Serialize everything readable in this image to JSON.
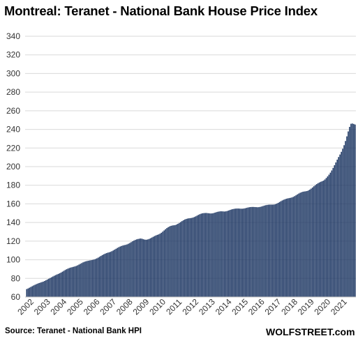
{
  "chart_data": {
    "type": "bar",
    "title": "Montreal: Teranet - National Bank House Price Index",
    "xlabel": "",
    "ylabel": "",
    "ylim": [
      60,
      340
    ],
    "yticks": [
      60,
      80,
      100,
      120,
      140,
      160,
      180,
      200,
      220,
      240,
      260,
      280,
      300,
      320,
      340
    ],
    "grid": true,
    "bar_color": "#1f3864",
    "grid_color": "#d9d9d9",
    "frequency": "monthly",
    "x_tick_labels": [
      "2002",
      "2003",
      "2004",
      "2005",
      "2006",
      "2007",
      "2008",
      "2009",
      "2010",
      "2011",
      "2012",
      "2013",
      "2014",
      "2015",
      "2016",
      "2017",
      "2018",
      "2019",
      "2020",
      "2021"
    ],
    "annual_values": [
      {
        "year": "2002",
        "monthly": [
          68.5,
          69.2,
          70.0,
          70.8,
          71.6,
          72.4,
          73.1,
          73.8,
          74.4,
          75.0,
          75.5,
          76.0
        ]
      },
      {
        "year": "2003",
        "monthly": [
          76.5,
          77.2,
          78.0,
          78.8,
          79.6,
          80.4,
          81.2,
          82.0,
          82.8,
          83.5,
          84.2,
          84.8
        ]
      },
      {
        "year": "2004",
        "monthly": [
          85.5,
          86.3,
          87.2,
          88.1,
          89.0,
          89.8,
          90.5,
          91.1,
          91.6,
          92.0,
          92.4,
          92.8
        ]
      },
      {
        "year": "2005",
        "monthly": [
          93.3,
          94.0,
          94.8,
          95.6,
          96.4,
          97.2,
          97.8,
          98.3,
          98.7,
          99.0,
          99.3,
          99.6
        ]
      },
      {
        "year": "2006",
        "monthly": [
          99.9,
          100.3,
          100.8,
          101.5,
          102.3,
          103.2,
          104.1,
          105.0,
          105.8,
          106.5,
          107.1,
          107.6
        ]
      },
      {
        "year": "2007",
        "monthly": [
          108.0,
          108.5,
          109.2,
          110.0,
          110.9,
          111.8,
          112.7,
          113.5,
          114.2,
          114.8,
          115.3,
          115.7
        ]
      },
      {
        "year": "2008",
        "monthly": [
          116.0,
          116.5,
          117.2,
          118.0,
          118.9,
          119.8,
          120.6,
          121.3,
          121.9,
          122.3,
          122.6,
          122.8
        ]
      },
      {
        "year": "2009",
        "monthly": [
          122.5,
          122.0,
          121.6,
          121.5,
          121.8,
          122.3,
          123.0,
          123.8,
          124.6,
          125.4,
          126.1,
          126.7
        ]
      },
      {
        "year": "2010",
        "monthly": [
          127.2,
          128.0,
          129.0,
          130.2,
          131.5,
          132.8,
          134.0,
          135.0,
          135.8,
          136.4,
          136.8,
          137.0
        ]
      },
      {
        "year": "2011",
        "monthly": [
          137.2,
          137.8,
          138.6,
          139.5,
          140.5,
          141.5,
          142.4,
          143.2,
          143.8,
          144.2,
          144.5,
          144.7
        ]
      },
      {
        "year": "2012",
        "monthly": [
          144.9,
          145.3,
          145.9,
          146.6,
          147.4,
          148.2,
          148.9,
          149.5,
          149.9,
          150.1,
          150.2,
          150.2
        ]
      },
      {
        "year": "2013",
        "monthly": [
          150.0,
          149.8,
          149.7,
          149.8,
          150.1,
          150.6,
          151.1,
          151.5,
          151.8,
          152.0,
          152.0,
          151.9
        ]
      },
      {
        "year": "2014",
        "monthly": [
          151.8,
          152.0,
          152.4,
          152.9,
          153.5,
          154.0,
          154.4,
          154.7,
          154.9,
          155.0,
          155.0,
          154.9
        ]
      },
      {
        "year": "2015",
        "monthly": [
          154.8,
          154.8,
          155.0,
          155.3,
          155.7,
          156.1,
          156.4,
          156.6,
          156.7,
          156.7,
          156.6,
          156.5
        ]
      },
      {
        "year": "2016",
        "monthly": [
          156.4,
          156.5,
          156.8,
          157.2,
          157.7,
          158.2,
          158.6,
          158.9,
          159.1,
          159.2,
          159.2,
          159.2
        ]
      },
      {
        "year": "2017",
        "monthly": [
          159.3,
          159.7,
          160.3,
          161.1,
          162.0,
          162.9,
          163.7,
          164.4,
          165.0,
          165.5,
          165.9,
          166.2
        ]
      },
      {
        "year": "2018",
        "monthly": [
          166.5,
          166.9,
          167.5,
          168.3,
          169.2,
          170.2,
          171.1,
          171.9,
          172.5,
          173.0,
          173.3,
          173.5
        ]
      },
      {
        "year": "2019",
        "monthly": [
          173.8,
          174.4,
          175.3,
          176.4,
          177.6,
          178.9,
          180.1,
          181.2,
          182.2,
          183.0,
          183.7,
          184.3
        ]
      },
      {
        "year": "2020",
        "monthly": [
          185.0,
          186.2,
          187.8,
          189.5,
          191.4,
          193.5,
          195.9,
          198.6,
          201.5,
          204.5,
          207.5,
          210.3
        ]
      },
      {
        "year": "2021",
        "monthly": [
          213.0,
          215.9,
          219.2,
          223.0,
          227.5,
          232.5,
          237.8,
          242.7,
          246.0,
          246.3,
          245.8,
          245.2
        ]
      }
    ]
  },
  "labels": {
    "title": "Montreal: Teranet - National Bank House Price Index",
    "source": "Source: Teranet - National Bank HPI",
    "brand": "WOLFSTREET.com"
  }
}
